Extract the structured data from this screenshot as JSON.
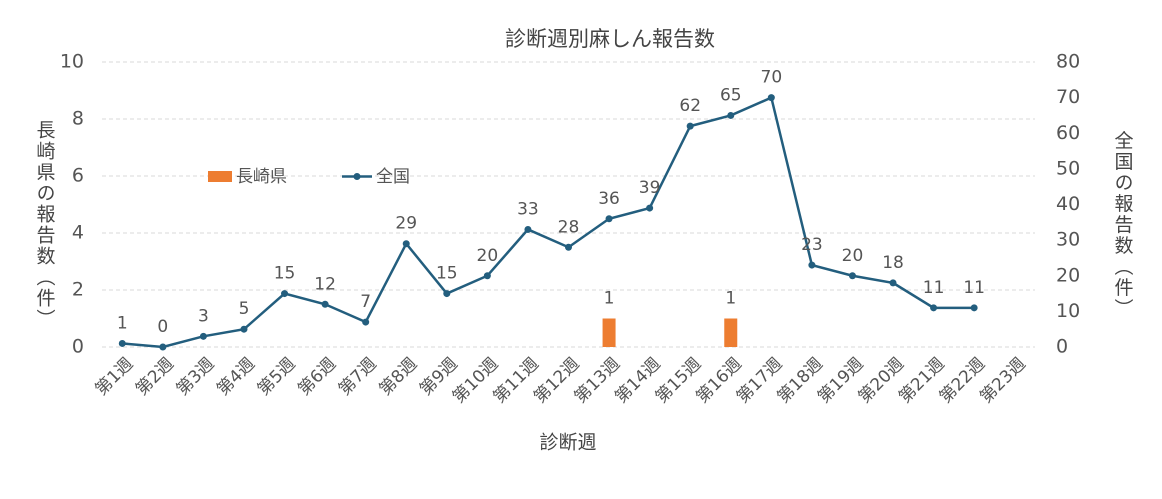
{
  "chart_data": {
    "type": "combo",
    "title": "診断週別麻しん報告数",
    "xlabel": "診断週",
    "ylabel": "長崎県の報告数（件）",
    "y2label": "全国の報告数（件）",
    "categories": [
      "第1週",
      "第2週",
      "第3週",
      "第4週",
      "第5週",
      "第6週",
      "第7週",
      "第8週",
      "第9週",
      "第10週",
      "第11週",
      "第12週",
      "第13週",
      "第14週",
      "第15週",
      "第16週",
      "第17週",
      "第18週",
      "第19週",
      "第20週",
      "第21週",
      "第22週",
      "第23週"
    ],
    "series": [
      {
        "name": "長崎県",
        "type": "bar",
        "color": "#ed7d31",
        "values": [
          null,
          null,
          null,
          null,
          null,
          null,
          null,
          null,
          null,
          null,
          null,
          null,
          1,
          null,
          null,
          1,
          null,
          null,
          null,
          null,
          null,
          null,
          null
        ]
      },
      {
        "name": "全国",
        "type": "line",
        "axis": "y2",
        "color": "#235e7e",
        "values": [
          1,
          0,
          3,
          5,
          15,
          12,
          7,
          29,
          15,
          20,
          33,
          28,
          36,
          39,
          62,
          65,
          70,
          23,
          20,
          18,
          11,
          11,
          null
        ]
      }
    ],
    "ylim": [
      0,
      10
    ],
    "yticks": [
      0,
      2,
      4,
      6,
      8,
      10
    ],
    "y2lim": [
      0,
      80
    ],
    "y2ticks": [
      0,
      10,
      20,
      30,
      40,
      50,
      60,
      70,
      80
    ],
    "grid": true
  }
}
